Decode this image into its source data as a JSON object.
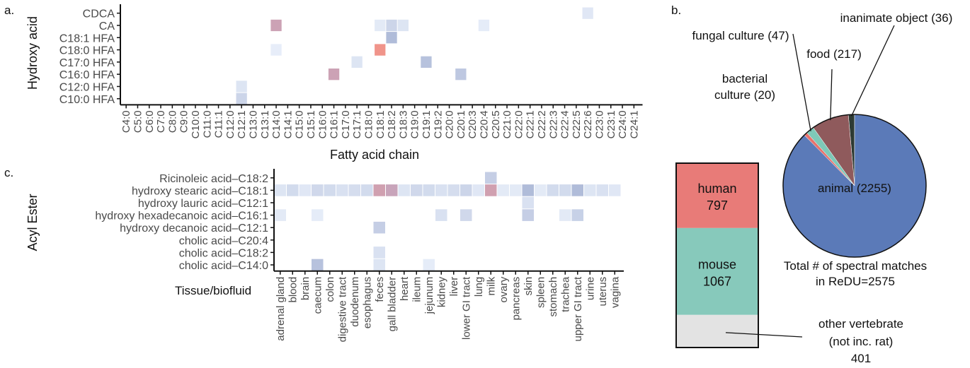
{
  "panel_labels": [
    "a.",
    "b.",
    "c."
  ],
  "chart_data": [
    {
      "type": "heatmap",
      "ylabel": "Hydroxy acid",
      "xlabel": "Fatty acid chain",
      "rows": [
        "CDCA",
        "CA",
        "C18:1 HFA",
        "C18:0 HFA",
        "C17:0 HFA",
        "C16:0 HFA",
        "C12:0 HFA",
        "C10:0 HFA"
      ],
      "columns": [
        "C4:0",
        "C5:0",
        "C6:0",
        "C7:0",
        "C8:0",
        "C9:0",
        "C10:0",
        "C11:0",
        "C11:1",
        "C12:0",
        "C12:1",
        "C13:0",
        "C13:1",
        "C14:0",
        "C14:1",
        "C15:0",
        "C15:1",
        "C16:0",
        "C16:1",
        "C17:0",
        "C17:1",
        "C18:0",
        "C18:1",
        "C18:2",
        "C18:3",
        "C19:0",
        "C19:1",
        "C19:2",
        "C20:0",
        "C20:1",
        "C20:3",
        "C20:4",
        "C20:5",
        "C21:0",
        "C22:0",
        "C22:1",
        "C22:2",
        "C22:3",
        "C22:4",
        "C22:5",
        "C22:6",
        "C23:0",
        "C23:1",
        "C24:0",
        "C24:1"
      ],
      "cells": [
        {
          "row": "CDCA",
          "col": "C22:6",
          "value": 0.1
        },
        {
          "row": "CA",
          "col": "C14:0",
          "value": 0.55
        },
        {
          "row": "CA",
          "col": "C18:1",
          "value": 0.08
        },
        {
          "row": "CA",
          "col": "C18:2",
          "value": 0.25
        },
        {
          "row": "CA",
          "col": "C18:3",
          "value": 0.12
        },
        {
          "row": "CA",
          "col": "C20:4",
          "value": 0.06
        },
        {
          "row": "C18:1 HFA",
          "col": "C18:2",
          "value": 0.45
        },
        {
          "row": "C18:0 HFA",
          "col": "C14:0",
          "value": 0.05
        },
        {
          "row": "C18:0 HFA",
          "col": "C18:1",
          "value": 1.0
        },
        {
          "row": "C17:0 HFA",
          "col": "C17:1",
          "value": 0.12
        },
        {
          "row": "C17:0 HFA",
          "col": "C19:1",
          "value": 0.4
        },
        {
          "row": "C16:0 HFA",
          "col": "C16:1",
          "value": 0.55
        },
        {
          "row": "C16:0 HFA",
          "col": "C20:1",
          "value": 0.35
        },
        {
          "row": "C12:0 HFA",
          "col": "C12:1",
          "value": 0.12
        },
        {
          "row": "C10:0 HFA",
          "col": "C12:1",
          "value": 0.25
        }
      ]
    },
    {
      "type": "heatmap",
      "ylabel": "Acyl Ester",
      "xlabel": "Tissue/biofluid",
      "rows": [
        "Ricinoleic acid–C18:2",
        "hydroxy stearic acid–C18:1",
        "hydroxy lauric acid–C12:1",
        "hydroxy hexadecanoic acid–C16:1",
        "hydroxy decanoic acid–C12:1",
        "cholic acid–C20:4",
        "cholic acid–C18:2",
        "cholic acid–C14:0"
      ],
      "columns": [
        "adrenal gland",
        "blood",
        "brain",
        "caecum",
        "colon",
        "digestive tract",
        "duodenum",
        "esophagus",
        "feces",
        "gall bladder",
        "heart",
        "ileum",
        "jejunum",
        "kidney",
        "liver",
        "lower GI tract",
        "lung",
        "milk",
        "ovary",
        "pancreas",
        "skin",
        "spleen",
        "stomach",
        "trachea",
        "upper GI tract",
        "urine",
        "uterus",
        "vagina"
      ],
      "cells": [
        {
          "row": "Ricinoleic acid–C18:2",
          "col": "milk",
          "value": 0.3
        },
        {
          "row": "hydroxy stearic acid–C18:1",
          "col": "adrenal gland",
          "value": 0.12
        },
        {
          "row": "hydroxy stearic acid–C18:1",
          "col": "blood",
          "value": 0.2
        },
        {
          "row": "hydroxy stearic acid–C18:1",
          "col": "brain",
          "value": 0.1
        },
        {
          "row": "hydroxy stearic acid–C18:1",
          "col": "caecum",
          "value": 0.22
        },
        {
          "row": "hydroxy stearic acid–C18:1",
          "col": "colon",
          "value": 0.2
        },
        {
          "row": "hydroxy stearic acid–C18:1",
          "col": "digestive tract",
          "value": 0.15
        },
        {
          "row": "hydroxy stearic acid–C18:1",
          "col": "duodenum",
          "value": 0.18
        },
        {
          "row": "hydroxy stearic acid–C18:1",
          "col": "esophagus",
          "value": 0.2
        },
        {
          "row": "hydroxy stearic acid–C18:1",
          "col": "feces",
          "value": 0.6
        },
        {
          "row": "hydroxy stearic acid–C18:1",
          "col": "gall bladder",
          "value": 0.5
        },
        {
          "row": "hydroxy stearic acid–C18:1",
          "col": "heart",
          "value": 0.12
        },
        {
          "row": "hydroxy stearic acid–C18:1",
          "col": "ileum",
          "value": 0.22
        },
        {
          "row": "hydroxy stearic acid–C18:1",
          "col": "jejunum",
          "value": 0.2
        },
        {
          "row": "hydroxy stearic acid–C18:1",
          "col": "kidney",
          "value": 0.15
        },
        {
          "row": "hydroxy stearic acid–C18:1",
          "col": "liver",
          "value": 0.18
        },
        {
          "row": "hydroxy stearic acid–C18:1",
          "col": "lower GI tract",
          "value": 0.25
        },
        {
          "row": "hydroxy stearic acid–C18:1",
          "col": "lung",
          "value": 0.1
        },
        {
          "row": "hydroxy stearic acid–C18:1",
          "col": "milk",
          "value": 0.6
        },
        {
          "row": "hydroxy stearic acid–C18:1",
          "col": "ovary",
          "value": 0.08
        },
        {
          "row": "hydroxy stearic acid–C18:1",
          "col": "pancreas",
          "value": 0.08
        },
        {
          "row": "hydroxy stearic acid–C18:1",
          "col": "skin",
          "value": 0.45
        },
        {
          "row": "hydroxy stearic acid–C18:1",
          "col": "spleen",
          "value": 0.08
        },
        {
          "row": "hydroxy stearic acid–C18:1",
          "col": "stomach",
          "value": 0.2
        },
        {
          "row": "hydroxy stearic acid–C18:1",
          "col": "trachea",
          "value": 0.2
        },
        {
          "row": "hydroxy stearic acid–C18:1",
          "col": "upper GI tract",
          "value": 0.45
        },
        {
          "row": "hydroxy stearic acid–C18:1",
          "col": "urine",
          "value": 0.12
        },
        {
          "row": "hydroxy stearic acid–C18:1",
          "col": "uterus",
          "value": 0.15
        },
        {
          "row": "hydroxy stearic acid–C18:1",
          "col": "vagina",
          "value": 0.1
        },
        {
          "row": "hydroxy lauric acid–C12:1",
          "col": "skin",
          "value": 0.15
        },
        {
          "row": "hydroxy hexadecanoic acid–C16:1",
          "col": "adrenal gland",
          "value": 0.08
        },
        {
          "row": "hydroxy hexadecanoic acid–C16:1",
          "col": "caecum",
          "value": 0.06
        },
        {
          "row": "hydroxy hexadecanoic acid–C16:1",
          "col": "kidney",
          "value": 0.15
        },
        {
          "row": "hydroxy hexadecanoic acid–C16:1",
          "col": "lower GI tract",
          "value": 0.22
        },
        {
          "row": "hydroxy hexadecanoic acid–C16:1",
          "col": "skin",
          "value": 0.3
        },
        {
          "row": "hydroxy hexadecanoic acid–C16:1",
          "col": "trachea",
          "value": 0.08
        },
        {
          "row": "hydroxy hexadecanoic acid–C16:1",
          "col": "upper GI tract",
          "value": 0.28
        },
        {
          "row": "hydroxy decanoic acid–C12:1",
          "col": "feces",
          "value": 0.3
        },
        {
          "row": "cholic acid–C18:2",
          "col": "feces",
          "value": 0.15
        },
        {
          "row": "cholic acid–C14:0",
          "col": "caecum",
          "value": 0.4
        },
        {
          "row": "cholic acid–C14:0",
          "col": "feces",
          "value": 0.12
        },
        {
          "row": "cholic acid–C14:0",
          "col": "jejunum",
          "value": 0.06
        }
      ]
    },
    {
      "type": "pie",
      "categories": [
        "animal",
        "bacterial culture",
        "fungal culture",
        "food",
        "inanimate object"
      ],
      "values": [
        2255,
        20,
        47,
        217,
        36
      ],
      "labels": [
        "animal (2255)",
        "bacterial culture (20)",
        "fungal culture (47)",
        "food (217)",
        "inanimate object (36)"
      ],
      "colors": [
        "#5b7ab8",
        "#e8726c",
        "#7ec9b8",
        "#8f5a5c",
        "#2d3a33"
      ],
      "total_text": [
        "Total # of spectral matches",
        "in ReDU=2575"
      ]
    },
    {
      "type": "bar",
      "stacked": true,
      "categories": [
        "human",
        "mouse",
        "other vertebrate"
      ],
      "values": [
        797,
        1067,
        401
      ],
      "colors": [
        "#e87b78",
        "#87c9bb",
        "#e3e3e3"
      ],
      "callout": [
        "other vertebrate",
        "(not inc. rat)",
        "401"
      ]
    }
  ]
}
